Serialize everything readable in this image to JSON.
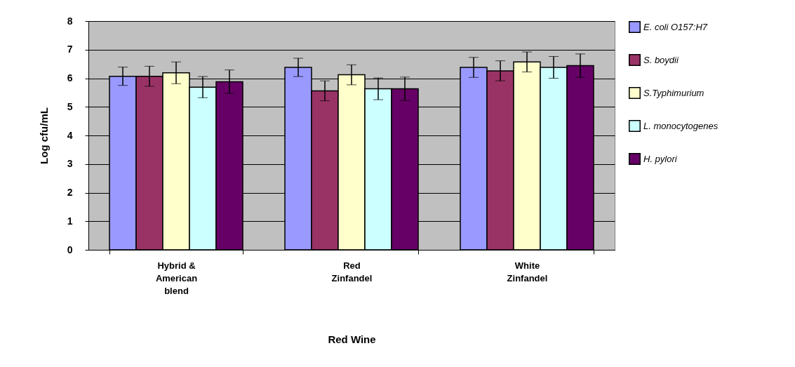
{
  "chart_data": {
    "type": "bar",
    "xlabel": "Red Wine",
    "ylabel": "Log cfu/mL",
    "categories": [
      "Hybrid & American blend",
      "Red Zinfandel",
      "White Zinfandel"
    ],
    "series": [
      {
        "name": "E. coli O157:H7",
        "color": "#9999ff",
        "values": [
          6.07,
          6.38,
          6.38
        ],
        "errors": [
          0.32,
          0.32,
          0.35
        ]
      },
      {
        "name": "S. boydii",
        "color": "#993366",
        "values": [
          6.07,
          5.56,
          6.26
        ],
        "errors": [
          0.35,
          0.35,
          0.35
        ]
      },
      {
        "name": "S.Typhimurium",
        "color": "#ffffcc",
        "values": [
          6.19,
          6.12,
          6.57
        ],
        "errors": [
          0.38,
          0.35,
          0.35
        ]
      },
      {
        "name": "L. monocytogenes",
        "color": "#ccffff",
        "values": [
          5.69,
          5.63,
          6.38
        ],
        "errors": [
          0.37,
          0.38,
          0.38
        ]
      },
      {
        "name": "H. pylori",
        "color": "#660066",
        "values": [
          5.88,
          5.63,
          6.44
        ],
        "errors": [
          0.41,
          0.41,
          0.41
        ]
      }
    ],
    "ylim": [
      0,
      8
    ],
    "yticks": [
      0,
      1,
      2,
      3,
      4,
      5,
      6,
      7,
      8
    ],
    "grid": "y",
    "legend": "right"
  }
}
